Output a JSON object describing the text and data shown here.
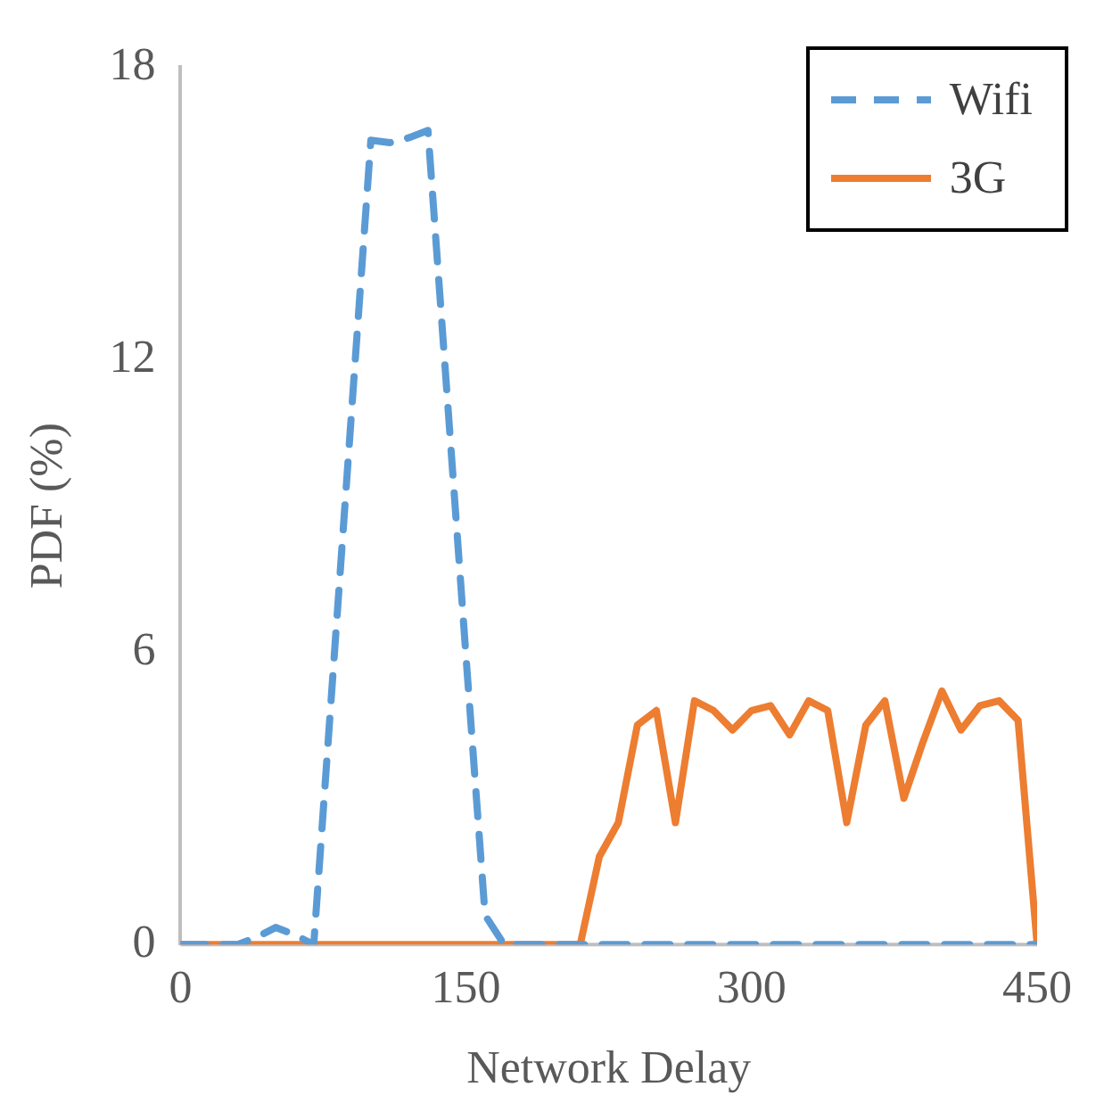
{
  "chart_data": {
    "type": "line",
    "xlabel": "Network Delay",
    "ylabel": "PDF (%)",
    "x": [
      0,
      10,
      20,
      30,
      40,
      50,
      60,
      70,
      80,
      90,
      100,
      110,
      120,
      130,
      140,
      150,
      160,
      170,
      180,
      190,
      200,
      210,
      220,
      230,
      240,
      250,
      260,
      270,
      280,
      290,
      300,
      310,
      320,
      330,
      340,
      350,
      360,
      370,
      380,
      390,
      400,
      410,
      420,
      430,
      440,
      450
    ],
    "series": [
      {
        "name": "Wifi",
        "color": "#5b9bd5",
        "line_style": "dashed",
        "values": [
          0,
          0,
          0,
          0,
          0.15,
          0.35,
          0.2,
          0,
          5.5,
          11,
          16.5,
          16.45,
          16.55,
          16.7,
          11.3,
          5.9,
          0.6,
          0,
          0,
          0,
          0,
          0,
          0,
          0,
          0,
          0,
          0,
          0,
          0,
          0,
          0,
          0,
          0,
          0,
          0,
          0,
          0,
          0,
          0,
          0,
          0,
          0,
          0,
          0,
          0,
          0
        ]
      },
      {
        "name": "3G",
        "color": "#ed7d31",
        "line_style": "solid",
        "values": [
          0,
          0,
          0,
          0,
          0,
          0,
          0,
          0,
          0,
          0,
          0,
          0,
          0,
          0,
          0,
          0,
          0,
          0,
          0,
          0,
          0,
          0,
          1.8,
          2.5,
          4.5,
          4.8,
          2.5,
          5.0,
          4.8,
          4.4,
          4.8,
          4.9,
          4.3,
          5.0,
          4.8,
          2.5,
          4.5,
          5.0,
          3.0,
          4.15,
          5.2,
          4.4,
          4.9,
          5.0,
          4.6,
          0
        ]
      }
    ],
    "xlim": [
      0,
      450
    ],
    "xticks": [
      0,
      150,
      300,
      450
    ],
    "ylim": [
      0,
      18
    ],
    "yticks": [
      0,
      6,
      12,
      18
    ],
    "legend": "top right",
    "marker": "none"
  }
}
